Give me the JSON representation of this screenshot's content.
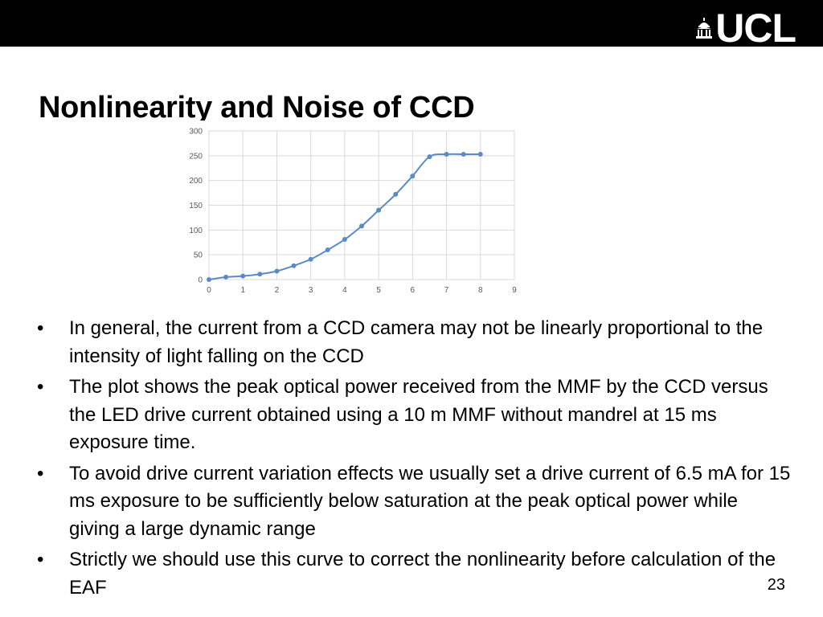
{
  "header": {
    "logo_text": "UCL",
    "logo_icon": "ucl-portico-icon"
  },
  "slide": {
    "title": "Nonlinearity and Noise of CCD",
    "page_number": "23"
  },
  "bullets": [
    {
      "marker": "•",
      "text": "In general, the current from a CCD camera may not be linearly proportional to the intensity of light falling on the CCD"
    },
    {
      "marker": "•",
      "text": "The plot shows the peak optical power received from the MMF by the CCD versus the LED drive current obtained using a 10 m MMF without mandrel at 15 ms exposure time."
    },
    {
      "marker": "•",
      "text": "To avoid drive current variation effects we usually set a drive current of 6.5 mA for 15 ms exposure to be sufficiently below saturation at the peak optical power while giving a large dynamic range"
    },
    {
      "marker": "•",
      "text": "Strictly we should use this curve to correct the nonlinearity before calculation of the EAF"
    }
  ],
  "colors": {
    "header_bar": "#000000",
    "series_line": "#5b8ac6",
    "grid": "#d9d9d9",
    "tick_text": "#595959"
  },
  "chart_data": {
    "type": "line",
    "title": "",
    "xlabel": "",
    "ylabel": "",
    "xlim": [
      0,
      9
    ],
    "ylim": [
      0,
      300
    ],
    "x_ticks": [
      "0",
      "1",
      "2",
      "3",
      "4",
      "5",
      "6",
      "7",
      "8",
      "9"
    ],
    "y_ticks": [
      "0",
      "50",
      "100",
      "150",
      "200",
      "250",
      "300"
    ],
    "grid": true,
    "legend": "none",
    "series": [
      {
        "x": [
          0,
          0.5,
          1,
          1.5,
          2,
          2.5,
          3,
          3.5,
          4,
          4.5,
          5,
          5.5,
          6,
          6.5,
          7,
          7.5,
          8
        ],
        "y": [
          0,
          5,
          7,
          11,
          17,
          28,
          41,
          60,
          81,
          108,
          140,
          172,
          209,
          248,
          253,
          253,
          253
        ]
      }
    ]
  }
}
